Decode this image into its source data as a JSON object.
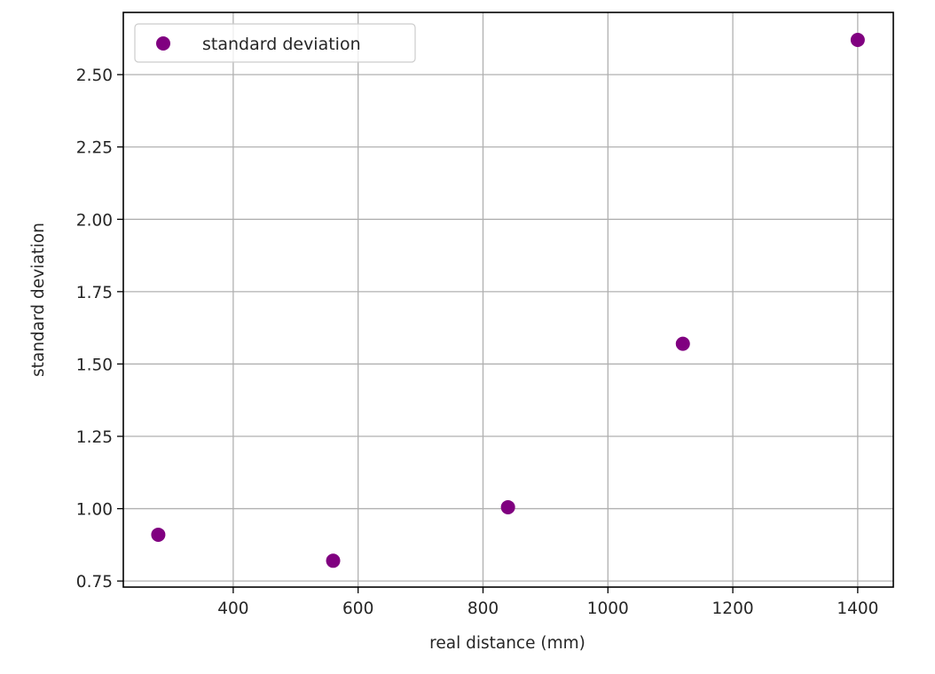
{
  "chart_data": {
    "type": "scatter",
    "title": "",
    "xlabel": "real distance (mm)",
    "ylabel": "standard deviation",
    "xlim": [
      224,
      1457
    ],
    "ylim": [
      0.729,
      2.715
    ],
    "grid": true,
    "legend_position": "upper left",
    "x_ticks": [
      400,
      600,
      800,
      1000,
      1200,
      1400
    ],
    "x_tick_labels": [
      "400",
      "600",
      "800",
      "1000",
      "1200",
      "1400"
    ],
    "y_ticks": [
      0.75,
      1.0,
      1.25,
      1.5,
      1.75,
      2.0,
      2.25,
      2.5
    ],
    "y_tick_labels": [
      "0.75",
      "1.00",
      "1.25",
      "1.50",
      "1.75",
      "2.00",
      "2.25",
      "2.50"
    ],
    "series": [
      {
        "name": "standard deviation",
        "color": "#800080",
        "marker": "circle",
        "x": [
          280,
          560,
          840,
          1120,
          1400
        ],
        "y": [
          0.91,
          0.82,
          1.005,
          1.57,
          2.62
        ]
      }
    ]
  },
  "legend": {
    "entries": [
      {
        "label": "standard deviation",
        "color": "#800080"
      }
    ]
  },
  "colors": {
    "grid": "#b0b0b0",
    "axis": "#000000",
    "text": "#262626",
    "legend_border": "#cccccc"
  }
}
